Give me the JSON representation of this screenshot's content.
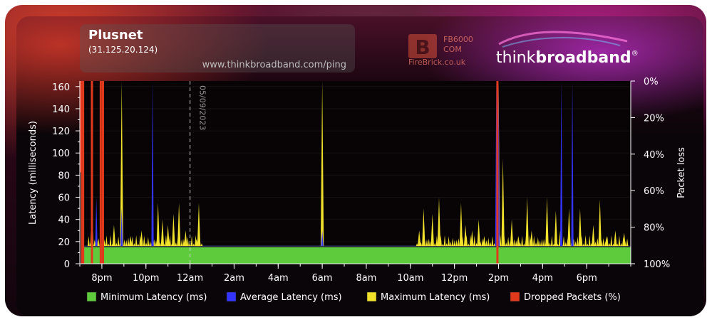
{
  "header": {
    "isp_name": "Plusnet",
    "ip": "(31.125.20.124)",
    "url": "www.thinkbroadband.com/ping",
    "sponsor_line1": "FB6000",
    "sponsor_line2": "COM",
    "sponsor_site": "FireBrick.co.uk",
    "logo_text_light": "think",
    "logo_text_bold": "broadband",
    "logo_mark": "®"
  },
  "colors": {
    "min_latency": "#5ecb3c",
    "avg_latency": "#3434ff",
    "max_latency": "#f2e12a",
    "dropped": "#e0391c"
  },
  "chart_data": {
    "type": "area",
    "ylabel": "Latency (milliseconds)",
    "y2label": "Packet loss",
    "ylim": [
      0,
      165
    ],
    "yticks": [
      0,
      20,
      40,
      60,
      80,
      100,
      120,
      140,
      160
    ],
    "y2ticks": [
      "0%",
      "20%",
      "40%",
      "60%",
      "80%",
      "100%"
    ],
    "xlim": [
      0,
      25
    ],
    "xticks": [
      {
        "x": 1,
        "label": "8pm"
      },
      {
        "x": 3,
        "label": "10pm"
      },
      {
        "x": 5,
        "label": "12am"
      },
      {
        "x": 7,
        "label": "2am"
      },
      {
        "x": 9,
        "label": "4am"
      },
      {
        "x": 11,
        "label": "6am"
      },
      {
        "x": 13,
        "label": "8am"
      },
      {
        "x": 15,
        "label": "10am"
      },
      {
        "x": 17,
        "label": "12pm"
      },
      {
        "x": 19,
        "label": "2pm"
      },
      {
        "x": 21,
        "label": "4pm"
      },
      {
        "x": 23,
        "label": "6pm"
      }
    ],
    "date_marker": {
      "x": 5,
      "label": "05/09/2023"
    },
    "min_latency_ms": 15,
    "avg_latency_ms": 16,
    "max_latency_spikes": [
      {
        "x": 0.55,
        "y": 60
      },
      {
        "x": 0.75,
        "y": 30
      },
      {
        "x": 1.1,
        "y": 22
      },
      {
        "x": 1.55,
        "y": 35
      },
      {
        "x": 1.9,
        "y": 165
      },
      {
        "x": 2.3,
        "y": 25
      },
      {
        "x": 2.8,
        "y": 30
      },
      {
        "x": 3.3,
        "y": 25
      },
      {
        "x": 3.55,
        "y": 55
      },
      {
        "x": 3.75,
        "y": 40
      },
      {
        "x": 4.0,
        "y": 35
      },
      {
        "x": 4.25,
        "y": 45
      },
      {
        "x": 4.5,
        "y": 55
      },
      {
        "x": 4.8,
        "y": 30
      },
      {
        "x": 5.3,
        "y": 22
      },
      {
        "x": 5.4,
        "y": 55
      },
      {
        "x": 11.0,
        "y": 165
      },
      {
        "x": 15.4,
        "y": 30
      },
      {
        "x": 15.6,
        "y": 50
      },
      {
        "x": 16.0,
        "y": 45
      },
      {
        "x": 16.3,
        "y": 60
      },
      {
        "x": 17.3,
        "y": 55
      },
      {
        "x": 17.5,
        "y": 35
      },
      {
        "x": 17.8,
        "y": 30
      },
      {
        "x": 18.1,
        "y": 40
      },
      {
        "x": 18.35,
        "y": 25
      },
      {
        "x": 19.0,
        "y": 165
      },
      {
        "x": 19.2,
        "y": 95
      },
      {
        "x": 19.6,
        "y": 40
      },
      {
        "x": 19.9,
        "y": 25
      },
      {
        "x": 20.3,
        "y": 60
      },
      {
        "x": 20.5,
        "y": 30
      },
      {
        "x": 21.2,
        "y": 60
      },
      {
        "x": 21.6,
        "y": 48
      },
      {
        "x": 21.8,
        "y": 30
      },
      {
        "x": 22.2,
        "y": 50
      },
      {
        "x": 22.7,
        "y": 50
      },
      {
        "x": 23.3,
        "y": 35
      },
      {
        "x": 23.6,
        "y": 58
      },
      {
        "x": 23.9,
        "y": 25
      },
      {
        "x": 24.3,
        "y": 30
      },
      {
        "x": 24.7,
        "y": 28
      }
    ],
    "avg_latency_spikes": [
      {
        "x": 0.75,
        "y": 60
      },
      {
        "x": 1.9,
        "y": 50
      },
      {
        "x": 3.3,
        "y": 165
      },
      {
        "x": 11.0,
        "y": 30
      },
      {
        "x": 18.9,
        "y": 165
      },
      {
        "x": 19.0,
        "y": 165
      },
      {
        "x": 21.85,
        "y": 165
      },
      {
        "x": 22.35,
        "y": 165
      }
    ],
    "dropped_packets_pct": [
      {
        "x": 0.05,
        "y": 50
      },
      {
        "x": 0.1,
        "y": 100
      },
      {
        "x": 0.15,
        "y": 100
      },
      {
        "x": 0.55,
        "y": 100
      },
      {
        "x": 0.95,
        "y": 100
      },
      {
        "x": 1.05,
        "y": 100
      },
      {
        "x": 18.95,
        "y": 100
      }
    ],
    "legend": [
      {
        "label": "Minimum Latency (ms)",
        "color_key": "min_latency"
      },
      {
        "label": "Average Latency (ms)",
        "color_key": "avg_latency"
      },
      {
        "label": "Maximum Latency (ms)",
        "color_key": "max_latency"
      },
      {
        "label": "Dropped Packets (%)",
        "color_key": "dropped"
      }
    ],
    "legend_position": "bottom"
  }
}
